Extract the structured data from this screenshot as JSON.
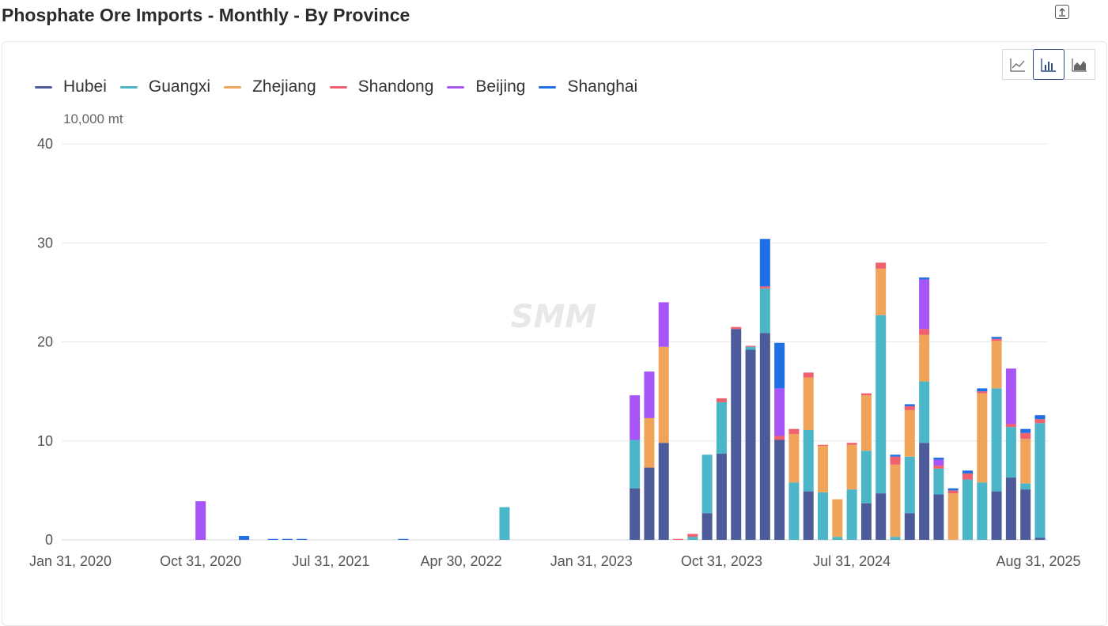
{
  "page": {
    "title": "Phosphate Ore Imports - Monthly - By Province"
  },
  "toolbar": {
    "export_icon": "export-icon",
    "views": [
      "line-chart-icon",
      "bar-chart-icon",
      "area-chart-icon"
    ],
    "active_view": "bar-chart-icon"
  },
  "watermark": "SMM",
  "chart_data": {
    "type": "bar",
    "stacked": true,
    "unit": "10,000 mt",
    "ylim": [
      0,
      40
    ],
    "yticks": [
      0,
      10,
      20,
      30,
      40
    ],
    "xtick_labels": [
      "Jan 31, 2020",
      "Oct 31, 2020",
      "Jul 31, 2021",
      "Apr 30, 2022",
      "Jan 31, 2023",
      "Oct 31, 2023",
      "Jul 31, 2024",
      "Aug 31, 2025"
    ],
    "grid": true,
    "legend_position": "top-left",
    "colors": {
      "Hubei": "#4e5b9b",
      "Guangxi": "#4bb6c8",
      "Zhejiang": "#f0a45a",
      "Shandong": "#f0606e",
      "Beijing": "#a855f7",
      "Shanghai": "#1f6fe5"
    },
    "categories": [
      "Jan 31, 2020",
      "Feb 29, 2020",
      "Mar 31, 2020",
      "Apr 30, 2020",
      "May 31, 2020",
      "Jun 30, 2020",
      "Jul 31, 2020",
      "Aug 31, 2020",
      "Sep 30, 2020",
      "Oct 31, 2020",
      "Nov 30, 2020",
      "Dec 31, 2020",
      "Jan 31, 2021",
      "Feb 28, 2021",
      "Mar 31, 2021",
      "Apr 30, 2021",
      "May 31, 2021",
      "Jun 30, 2021",
      "Jul 31, 2021",
      "Aug 31, 2021",
      "Sep 30, 2021",
      "Oct 31, 2021",
      "Nov 30, 2021",
      "Dec 31, 2021",
      "Jan 31, 2022",
      "Feb 28, 2022",
      "Mar 31, 2022",
      "Apr 30, 2022",
      "May 31, 2022",
      "Jun 30, 2022",
      "Jul 31, 2022",
      "Aug 31, 2022",
      "Sep 30, 2022",
      "Oct 31, 2022",
      "Nov 30, 2022",
      "Dec 31, 2022",
      "Jan 31, 2023",
      "Feb 28, 2023",
      "Mar 31, 2023",
      "Apr 30, 2023",
      "May 31, 2023",
      "Jun 30, 2023",
      "Jul 31, 2023",
      "Aug 31, 2023",
      "Sep 30, 2023",
      "Oct 31, 2023",
      "Nov 30, 2023",
      "Dec 31, 2023",
      "Jan 31, 2024",
      "Feb 29, 2024",
      "Mar 31, 2024",
      "Apr 30, 2024",
      "May 31, 2024",
      "Jun 30, 2024",
      "Jul 31, 2024",
      "Aug 31, 2024",
      "Sep 30, 2024",
      "Oct 31, 2024",
      "Nov 30, 2024",
      "Dec 31, 2024",
      "Jan 31, 2025",
      "Feb 28, 2025",
      "Mar 31, 2025",
      "Apr 30, 2025",
      "May 31, 2025",
      "Jun 30, 2025",
      "Jul 31, 2025",
      "Aug 31, 2025"
    ],
    "series": [
      {
        "name": "Hubei",
        "values": [
          0,
          0,
          0,
          0,
          0,
          0,
          0,
          0,
          0,
          0,
          0,
          0,
          0,
          0,
          0,
          0,
          0,
          0,
          0,
          0,
          0,
          0,
          0,
          0,
          0,
          0,
          0,
          0,
          0,
          0,
          0,
          0,
          0,
          0,
          0,
          0,
          0,
          0,
          0,
          5.2,
          7.3,
          9.8,
          0,
          0,
          2.7,
          8.7,
          21.3,
          19.2,
          20.9,
          10.1,
          0,
          4.9,
          0,
          0,
          0,
          3.7,
          4.7,
          0,
          2.7,
          9.8,
          4.6,
          0,
          0,
          0,
          4.9,
          6.3,
          5.1,
          0.2
        ]
      },
      {
        "name": "Guangxi",
        "values": [
          0,
          0,
          0,
          0,
          0,
          0,
          0,
          0,
          0,
          0,
          0,
          0,
          0,
          0,
          0,
          0,
          0,
          0,
          0,
          0,
          0,
          0,
          0,
          0,
          0,
          0,
          0,
          0,
          0,
          0,
          3.3,
          0,
          0,
          0,
          0,
          0,
          0,
          0,
          0,
          4.9,
          0,
          0,
          0,
          0.3,
          5.9,
          5.2,
          0,
          0.3,
          4.5,
          0,
          5.8,
          6.2,
          4.8,
          0.3,
          5.1,
          5.3,
          18.0,
          0.3,
          5.7,
          6.2,
          2.6,
          0,
          6.1,
          5.8,
          10.4,
          5.1,
          0.6,
          11.6
        ]
      },
      {
        "name": "Zhejiang",
        "values": [
          0,
          0,
          0,
          0,
          0,
          0,
          0,
          0,
          0,
          0,
          0,
          0,
          0,
          0,
          0,
          0,
          0,
          0,
          0,
          0,
          0,
          0,
          0,
          0,
          0,
          0,
          0,
          0,
          0,
          0,
          0,
          0,
          0,
          0,
          0,
          0,
          0,
          0,
          0,
          0,
          5.0,
          9.7,
          0,
          0,
          0,
          0,
          0,
          0,
          0,
          0,
          4.9,
          5.3,
          4.7,
          3.8,
          4.5,
          5.6,
          4.7,
          7.3,
          4.7,
          4.7,
          0,
          4.7,
          0,
          9.0,
          4.8,
          0,
          4.5,
          0
        ]
      },
      {
        "name": "Shandong",
        "values": [
          0,
          0,
          0,
          0,
          0,
          0,
          0,
          0,
          0,
          0,
          0,
          0,
          0,
          0,
          0,
          0,
          0,
          0,
          0,
          0,
          0,
          0,
          0,
          0,
          0,
          0,
          0,
          0,
          0,
          0,
          0,
          0,
          0,
          0,
          0,
          0,
          0,
          0,
          0,
          0,
          0,
          0,
          0.1,
          0.3,
          0,
          0.4,
          0.2,
          0.1,
          0.2,
          0.4,
          0.5,
          0.5,
          0.1,
          0,
          0.2,
          0.2,
          0.6,
          0.8,
          0.4,
          0.6,
          0.3,
          0.3,
          0.6,
          0.2,
          0.2,
          0.3,
          0.6,
          0.4
        ]
      },
      {
        "name": "Beijing",
        "values": [
          0,
          0,
          0,
          0,
          0,
          0,
          0,
          0,
          0,
          3.9,
          0,
          0,
          0,
          0,
          0,
          0,
          0,
          0,
          0,
          0,
          0,
          0,
          0,
          0,
          0,
          0,
          0,
          0,
          0,
          0,
          0,
          0,
          0,
          0,
          0,
          0,
          0,
          0,
          0,
          4.5,
          4.7,
          4.5,
          0,
          0,
          0,
          0,
          0,
          0,
          0,
          4.8,
          0,
          0,
          0,
          0,
          0,
          0,
          0,
          0,
          0,
          5.0,
          0.6,
          0,
          0,
          0,
          0,
          5.6,
          0,
          0
        ]
      },
      {
        "name": "Shanghai",
        "values": [
          0,
          0,
          0,
          0,
          0,
          0,
          0,
          0,
          0,
          0,
          0,
          0,
          0.4,
          0,
          0.1,
          0.1,
          0.1,
          0,
          0,
          0,
          0,
          0,
          0,
          0.1,
          0,
          0,
          0,
          0,
          0,
          0,
          0,
          0,
          0,
          0,
          0,
          0,
          0,
          0,
          0,
          0,
          0,
          0,
          0,
          0,
          0,
          0,
          0,
          0,
          4.8,
          4.6,
          0,
          0,
          0,
          0,
          0,
          0,
          0,
          0.2,
          0.2,
          0.2,
          0.2,
          0.2,
          0.3,
          0.3,
          0.2,
          0,
          0.4,
          0.4
        ]
      }
    ]
  }
}
